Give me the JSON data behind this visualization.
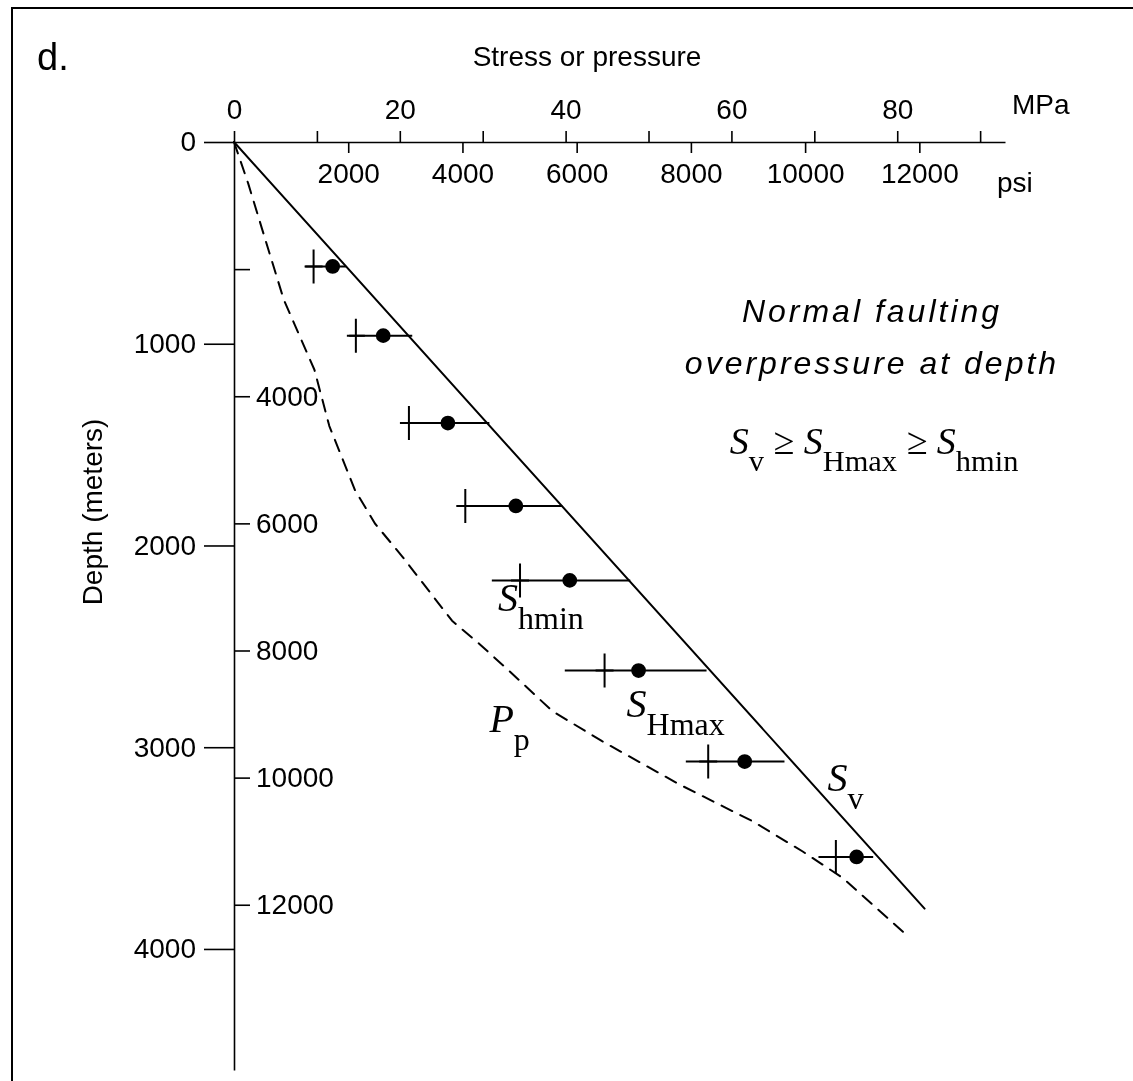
{
  "chart_data": {
    "type": "line",
    "xlabel": "Stress or pressure",
    "ylabel": "Depth (meters)",
    "x2label": "psi",
    "xlim": [
      0,
      93
    ],
    "xticks": [
      0,
      {
        "value": 10,
        "label": null
      },
      20,
      {
        "value": 30,
        "label": null
      },
      40,
      {
        "value": 50,
        "label": null
      },
      60,
      {
        "value": 70,
        "label": null
      },
      80,
      {
        "value": 90,
        "label": null
      }
    ],
    "x2lim": [
      0,
      13500
    ],
    "x2ticks": [
      2000,
      4000,
      6000,
      8000,
      10000,
      12000
    ],
    "ylim": [
      4600,
      0
    ],
    "yticks": [
      0,
      1000,
      2000,
      3000,
      4000
    ],
    "y2lim": [
      14600,
      0
    ],
    "y2ticks": [
      {
        "value": 2000,
        "label": null
      },
      4000,
      6000,
      8000,
      10000,
      12000
    ],
    "grid": false,
    "legend": false,
    "annotations": [
      "d.",
      "MPa",
      "Normal faulting",
      "overpressure at depth",
      "S$_{v}$ ≥ S$_{Hmax}$ ≥ S$_{hmin}$"
    ],
    "series": [
      {
        "name": "S$_{v}$",
        "type": "line",
        "color": "#000000",
        "line_style": "solid",
        "marker": "none",
        "x": [
          0,
          83.3
        ],
        "values": [
          0,
          3800
        ]
      },
      {
        "name": "P$_{p}$",
        "type": "line",
        "color": "#000000",
        "line_style": "dashed",
        "marker": "none",
        "x": [
          0,
          1.7,
          3.4,
          6.0,
          9.7,
          11.5,
          14.6,
          17.0,
          20.3,
          26.3,
          29.6,
          33.2,
          38.4,
          44.4,
          53.7,
          62.6,
          68.6,
          73.4,
          80.7
        ],
        "values": [
          0,
          204,
          433,
          781,
          1129,
          1408,
          1726,
          1891,
          2055,
          2373,
          2488,
          2622,
          2821,
          2970,
          3184,
          3368,
          3517,
          3647,
          3915
        ]
      },
      {
        "name": "S$_{hmin}$",
        "type": "scatter",
        "color": "#000000",
        "marker": "cross",
        "x": [
          9.6,
          14.7,
          21.1,
          27.9,
          34.5,
          44.7,
          57.2,
          72.6
        ],
        "values": [
          617,
          960,
          1393,
          1804,
          2173,
          2620,
          3071,
          3544
        ]
      },
      {
        "name": "S$_{Hmax}$",
        "type": "scatter",
        "color": "#000000",
        "marker": "circle",
        "x": [
          11.9,
          18.0,
          25.8,
          34.0,
          40.5,
          48.8,
          61.6,
          75.1
        ],
        "values": [
          617,
          960,
          1393,
          1804,
          2173,
          2620,
          3071,
          3544
        ],
        "xerrors": [
          [
            8.6,
            13.5
          ],
          [
            13.9,
            21.5
          ],
          [
            20.3,
            30.8
          ],
          [
            26.9,
            39.6
          ],
          [
            31.1,
            47.8
          ],
          [
            39.9,
            57.0
          ],
          [
            54.5,
            66.4
          ],
          [
            70.5,
            77.1
          ]
        ]
      }
    ]
  }
}
